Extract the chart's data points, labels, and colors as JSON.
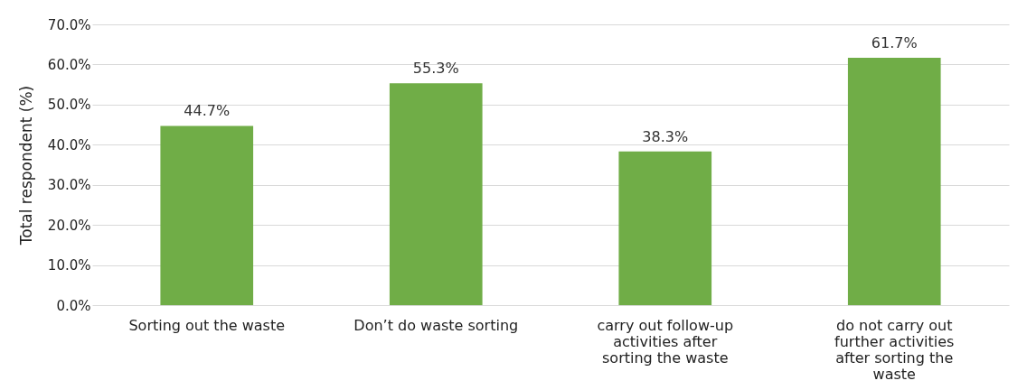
{
  "chart_data": {
    "type": "bar",
    "ylabel": "Total respondent (%)",
    "categories": [
      "Sorting out the waste",
      "Don’t do waste sorting",
      "carry out follow-up activities after sorting the waste",
      "do not carry out further activities after sorting the waste"
    ],
    "values": [
      44.7,
      55.3,
      38.3,
      61.7
    ],
    "value_labels": [
      "44.7%",
      "55.3%",
      "38.3%",
      "61.7%"
    ],
    "color": "#70ad47",
    "ylim": [
      0,
      70
    ],
    "yticks": [
      {
        "value": 0,
        "label": "0.0%"
      },
      {
        "value": 10,
        "label": "10.0%"
      },
      {
        "value": 20,
        "label": "20.0%"
      },
      {
        "value": 30,
        "label": "30.0%"
      },
      {
        "value": 40,
        "label": "40.0%"
      },
      {
        "value": 50,
        "label": "50.0%"
      },
      {
        "value": 60,
        "label": "60.0%"
      },
      {
        "value": 70,
        "label": "70.0%"
      }
    ],
    "grid": true
  }
}
